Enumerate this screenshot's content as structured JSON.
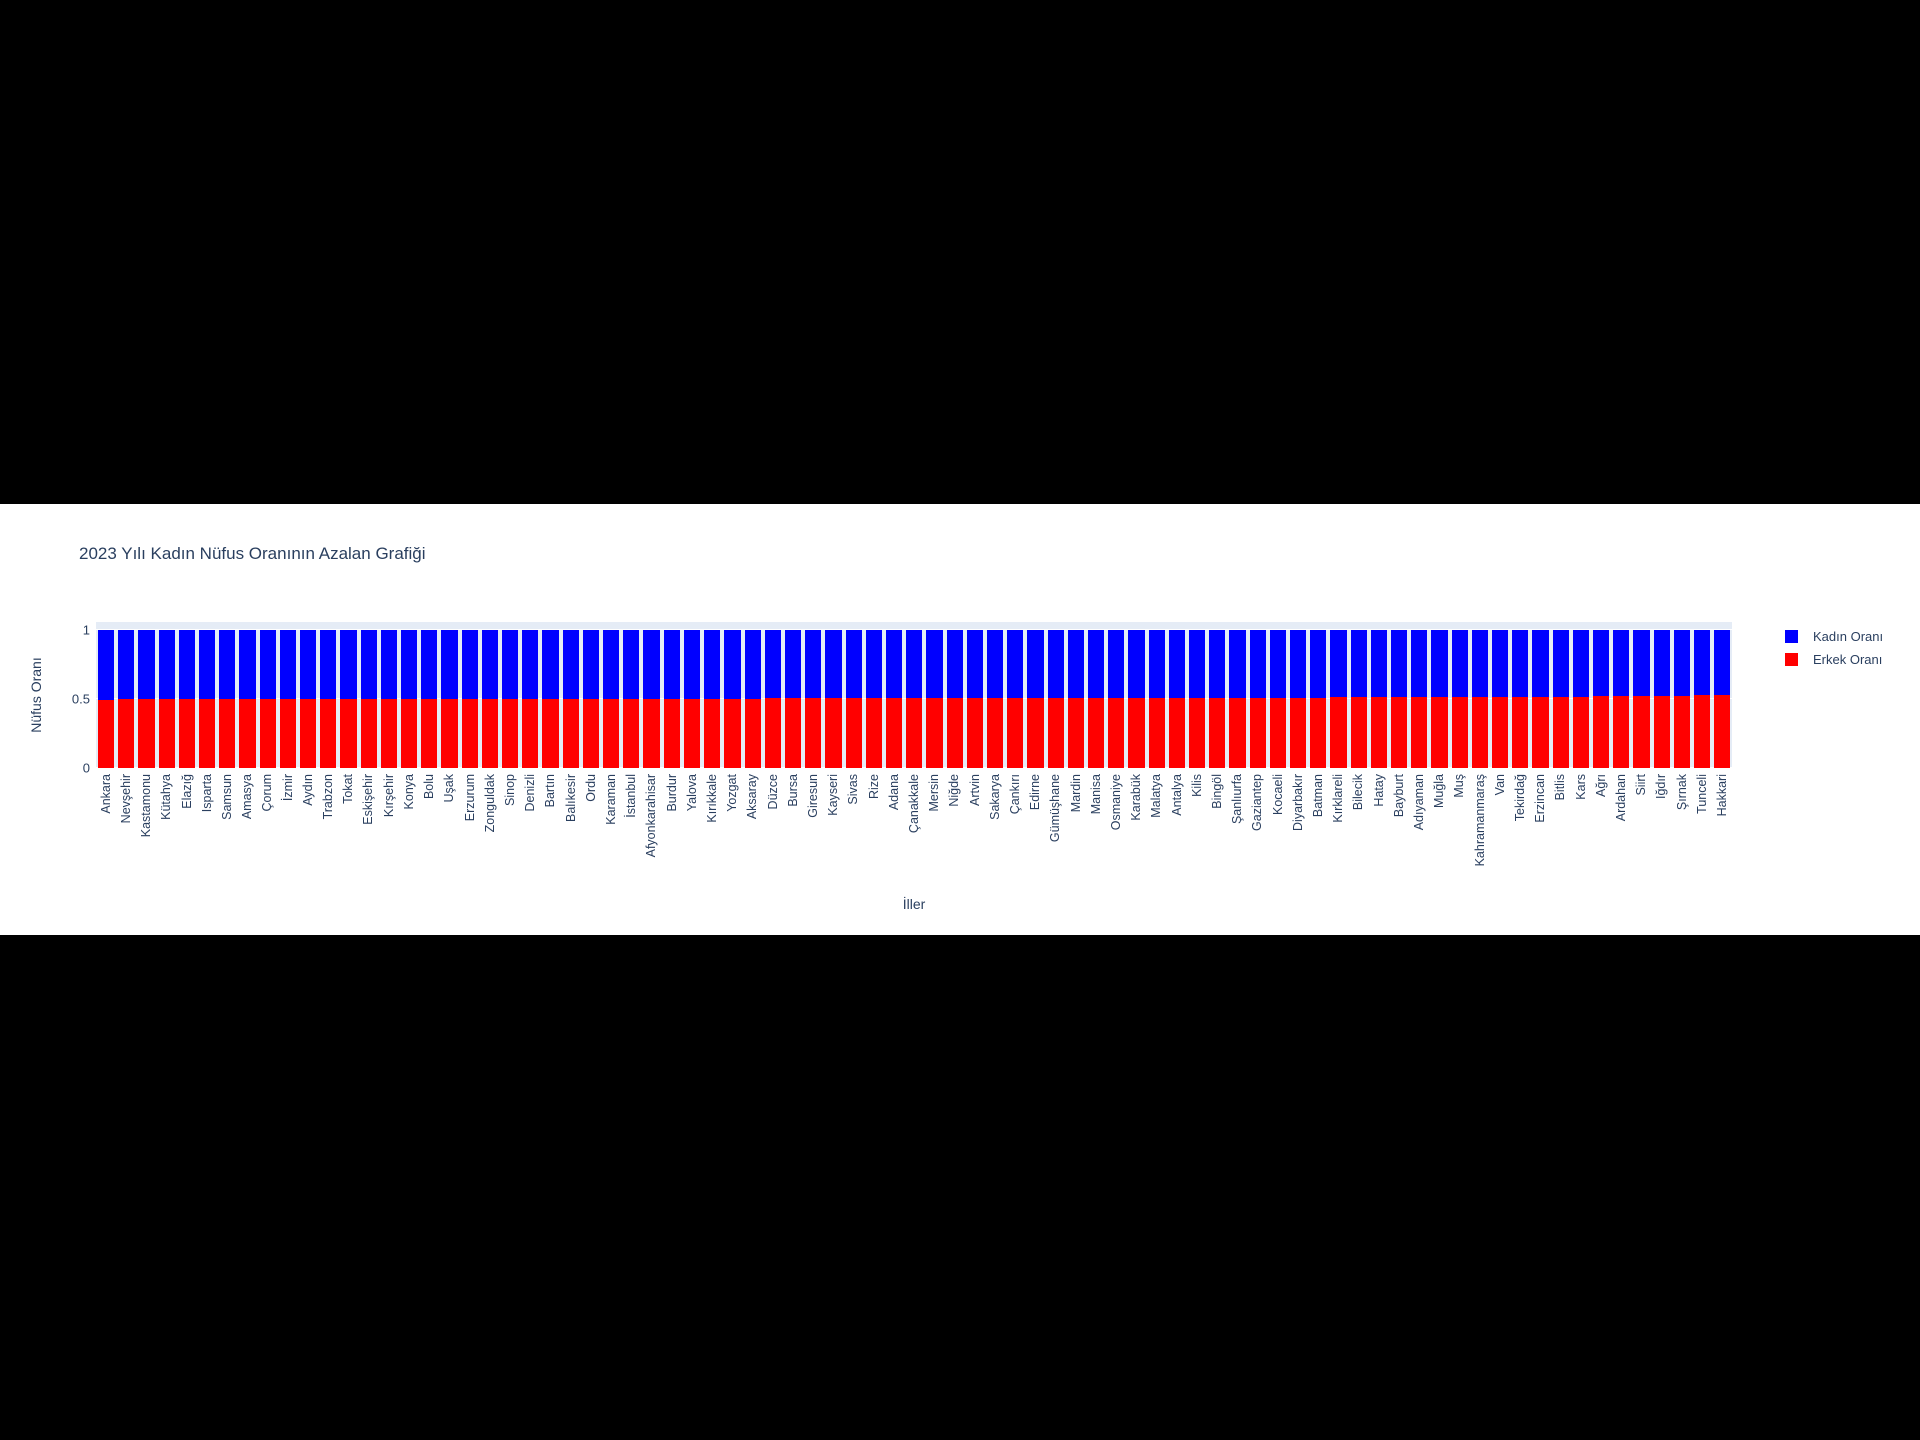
{
  "page": {
    "background_color": "#000000",
    "canvas_background_color": "#ffffff"
  },
  "chart_data": {
    "type": "bar",
    "stacked": true,
    "title": "2023 Yılı Kadın Nüfus Oranının Azalan Grafiği",
    "xlabel": "İller",
    "ylabel": "Nüfus Oranı",
    "ylim": [
      0,
      1.06
    ],
    "yticks": [
      0,
      0.5,
      1
    ],
    "ytick_labels": [
      "0",
      "0.5",
      "1"
    ],
    "grid": true,
    "plot_bgcolor": "#E5ECF6",
    "text_color": "#2a3f5f",
    "legend": {
      "position": "right",
      "entries": [
        {
          "label": "Kadın Oranı",
          "color": "#0000FF"
        },
        {
          "label": "Erkek Oranı",
          "color": "#FF0000"
        }
      ]
    },
    "categories": [
      "Ankara",
      "Nevşehir",
      "Kastamonu",
      "Kütahya",
      "Elazığ",
      "Isparta",
      "Samsun",
      "Amasya",
      "Çorum",
      "İzmir",
      "Aydın",
      "Trabzon",
      "Tokat",
      "Eskişehir",
      "Kırşehir",
      "Konya",
      "Bolu",
      "Uşak",
      "Erzurum",
      "Zonguldak",
      "Sinop",
      "Denizli",
      "Bartın",
      "Balıkesir",
      "Ordu",
      "Karaman",
      "İstanbul",
      "Afyonkarahisar",
      "Burdur",
      "Yalova",
      "Kırıkkale",
      "Yozgat",
      "Aksaray",
      "Düzce",
      "Bursa",
      "Giresun",
      "Kayseri",
      "Sivas",
      "Rize",
      "Adana",
      "Çanakkale",
      "Mersin",
      "Niğde",
      "Artvin",
      "Sakarya",
      "Çankırı",
      "Edirne",
      "Gümüşhane",
      "Mardin",
      "Manisa",
      "Osmaniye",
      "Karabük",
      "Malatya",
      "Antalya",
      "Kilis",
      "Bingöl",
      "Şanlıurfa",
      "Gaziantep",
      "Kocaeli",
      "Diyarbakır",
      "Batman",
      "Kırklareli",
      "Bilecik",
      "Hatay",
      "Bayburt",
      "Adıyaman",
      "Muğla",
      "Muş",
      "Kahramanmaraş",
      "Van",
      "Tekirdağ",
      "Erzincan",
      "Bitlis",
      "Kars",
      "Ağrı",
      "Ardahan",
      "Siirt",
      "Iğdır",
      "Şırnak",
      "Tunceli",
      "Hakkari"
    ],
    "series": [
      {
        "name": "Kadın Oranı",
        "color": "#0000FF",
        "values": [
          0.504,
          0.5035,
          0.503,
          0.5027,
          0.5024,
          0.5021,
          0.5018,
          0.5015,
          0.5012,
          0.501,
          0.5008,
          0.5006,
          0.5004,
          0.5002,
          0.5,
          0.4998,
          0.4996,
          0.4994,
          0.4992,
          0.499,
          0.4988,
          0.4986,
          0.4984,
          0.4982,
          0.498,
          0.4978,
          0.4976,
          0.4974,
          0.4972,
          0.497,
          0.4968,
          0.4966,
          0.4964,
          0.4962,
          0.496,
          0.4958,
          0.4956,
          0.4954,
          0.4952,
          0.495,
          0.4948,
          0.4946,
          0.4944,
          0.4942,
          0.494,
          0.4938,
          0.4936,
          0.4934,
          0.4932,
          0.493,
          0.4927,
          0.4924,
          0.4921,
          0.4918,
          0.4915,
          0.4912,
          0.4909,
          0.4906,
          0.4903,
          0.49,
          0.4895,
          0.489,
          0.4885,
          0.488,
          0.4875,
          0.487,
          0.4865,
          0.486,
          0.4855,
          0.485,
          0.4845,
          0.484,
          0.483,
          0.482,
          0.481,
          0.4795,
          0.478,
          0.4765,
          0.475,
          0.4735,
          0.472
        ]
      },
      {
        "name": "Erkek Oranı",
        "color": "#FF0000",
        "values": [
          0.496,
          0.4965,
          0.497,
          0.4973,
          0.4976,
          0.4979,
          0.4982,
          0.4985,
          0.4988,
          0.499,
          0.4992,
          0.4994,
          0.4996,
          0.4998,
          0.5,
          0.5002,
          0.5004,
          0.5006,
          0.5008,
          0.501,
          0.5012,
          0.5014,
          0.5016,
          0.5018,
          0.502,
          0.5022,
          0.5024,
          0.5026,
          0.5028,
          0.503,
          0.5032,
          0.5034,
          0.5036,
          0.5038,
          0.504,
          0.5042,
          0.5044,
          0.5046,
          0.5048,
          0.505,
          0.5052,
          0.5054,
          0.5056,
          0.5058,
          0.506,
          0.5062,
          0.5064,
          0.5066,
          0.5068,
          0.507,
          0.5073,
          0.5076,
          0.5079,
          0.5082,
          0.5085,
          0.5088,
          0.5091,
          0.5094,
          0.5097,
          0.51,
          0.5105,
          0.511,
          0.5115,
          0.512,
          0.5125,
          0.513,
          0.5135,
          0.514,
          0.5145,
          0.515,
          0.5155,
          0.516,
          0.517,
          0.518,
          0.519,
          0.5205,
          0.522,
          0.5235,
          0.525,
          0.5265,
          0.528
        ]
      }
    ]
  }
}
